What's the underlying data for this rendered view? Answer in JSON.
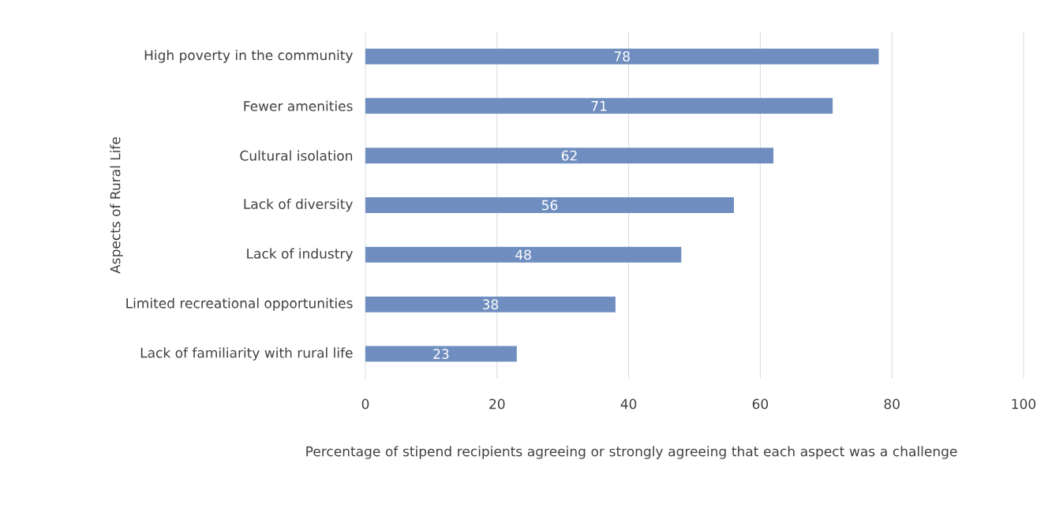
{
  "chart_data": {
    "type": "bar",
    "orientation": "horizontal",
    "xlabel": "Percentage of stipend recipients agreeing or strongly agreeing that each aspect was a challenge",
    "ylabel": "Aspects of Rural Life",
    "categories": [
      "High poverty in the community",
      "Fewer amenities",
      "Cultural isolation",
      "Lack of diversity",
      "Lack of industry",
      "Limited recreational opportunities",
      "Lack of familiarity with rural life"
    ],
    "values": [
      78,
      71,
      62,
      56,
      48,
      38,
      23
    ],
    "color": "#6f8ebf",
    "xlim": [
      0,
      100
    ],
    "xticks": [
      0,
      20,
      40,
      60,
      80,
      100
    ],
    "grid": "x",
    "data_labels": true
  }
}
